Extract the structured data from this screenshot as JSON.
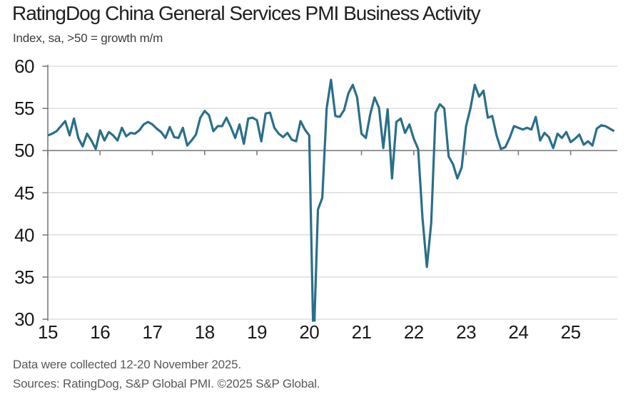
{
  "footer": {
    "line1": "Data were collected 12-20 November 2025.",
    "line2": "Sources: RatingDog, S&P Global PMI. ©2025 S&P Global."
  },
  "chart_data": {
    "type": "line",
    "title": "RatingDog China General Services PMI Business Activity",
    "subtitle": "Index, sa, >50 = growth m/m",
    "series_name": "Services PMI Business Activity Index",
    "frequency": "monthly",
    "x_start": "2015-01",
    "x_end": "2025-11",
    "ylim": [
      30,
      60
    ],
    "yticks": [
      60,
      55,
      50,
      45,
      40,
      35,
      30
    ],
    "xtick_labels": [
      "15",
      "16",
      "17",
      "18",
      "19",
      "20",
      "21",
      "22",
      "23",
      "24",
      "25"
    ],
    "growth_threshold": 50,
    "grid_on": true,
    "legend": "none",
    "values_below_ymin_clipped": true,
    "line_color": "#2A6F8A",
    "axis_color": "#7A7C7E",
    "grid_color": "#CFCFCF",
    "values": [
      51.8,
      52.0,
      52.3,
      52.9,
      53.5,
      51.8,
      53.8,
      51.5,
      50.5,
      52.0,
      51.2,
      50.2,
      52.4,
      51.2,
      52.2,
      51.8,
      51.2,
      52.7,
      51.7,
      52.1,
      52.0,
      52.4,
      53.1,
      53.4,
      53.1,
      52.6,
      52.2,
      51.5,
      52.8,
      51.6,
      51.5,
      52.7,
      50.6,
      51.2,
      51.9,
      53.9,
      54.7,
      54.2,
      52.3,
      52.9,
      52.9,
      53.9,
      52.8,
      51.5,
      53.1,
      50.8,
      53.8,
      53.9,
      53.6,
      51.1,
      54.4,
      54.5,
      52.7,
      52.0,
      51.6,
      52.1,
      51.3,
      51.1,
      53.5,
      52.5,
      51.8,
      26.5,
      43.0,
      44.4,
      55.0,
      58.4,
      54.1,
      54.0,
      54.8,
      56.8,
      57.8,
      56.3,
      52.0,
      51.5,
      54.3,
      56.3,
      55.1,
      50.3,
      54.9,
      46.7,
      53.4,
      53.8,
      52.1,
      53.1,
      51.4,
      50.2,
      42.0,
      36.2,
      41.4,
      54.5,
      55.5,
      55.0,
      49.3,
      48.4,
      46.7,
      48.0,
      52.9,
      55.0,
      57.8,
      56.4,
      57.1,
      53.9,
      54.1,
      51.8,
      50.2,
      50.4,
      51.5,
      52.9,
      52.7,
      52.5,
      52.7,
      52.5,
      54.0,
      51.2,
      52.1,
      51.6,
      50.3,
      52.0,
      51.5,
      52.2,
      51.0,
      51.4,
      51.9,
      50.7,
      51.1,
      50.6,
      52.6,
      53.0,
      52.9,
      52.6,
      52.3
    ]
  }
}
